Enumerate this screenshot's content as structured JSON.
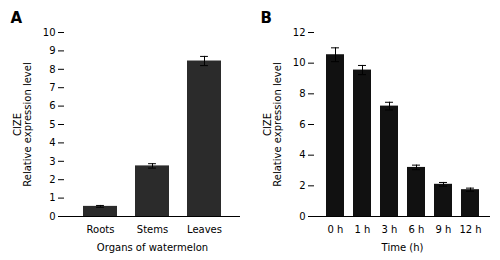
{
  "chart_data": [
    {
      "type": "bar",
      "title": "A",
      "categories": [
        "Roots",
        "Stems",
        "Leaves"
      ],
      "values": [
        0.55,
        2.75,
        8.45
      ],
      "errors": [
        0.05,
        0.12,
        0.25
      ],
      "color": "#2b2b2b",
      "xlabel": "Organs of watermelon",
      "ylabel": "ClZE\nRelative expression level",
      "ylim": [
        0,
        10
      ],
      "yticks": [
        0,
        1,
        2,
        3,
        4,
        5,
        6,
        7,
        8,
        9,
        10
      ],
      "grid": false
    },
    {
      "type": "bar",
      "title": "B",
      "categories": [
        "0 h",
        "1 h",
        "3 h",
        "6 h",
        "9 h",
        "12 h"
      ],
      "values": [
        10.55,
        9.55,
        7.2,
        3.2,
        2.1,
        1.75
      ],
      "errors": [
        0.45,
        0.3,
        0.25,
        0.15,
        0.12,
        0.1
      ],
      "color": "#111111",
      "xlabel": "Time (h)",
      "ylabel": "ClZE\nRelative expression level",
      "ylim": [
        0,
        12
      ],
      "yticks": [
        0,
        2,
        4,
        6,
        8,
        10,
        12
      ],
      "grid": false
    }
  ]
}
